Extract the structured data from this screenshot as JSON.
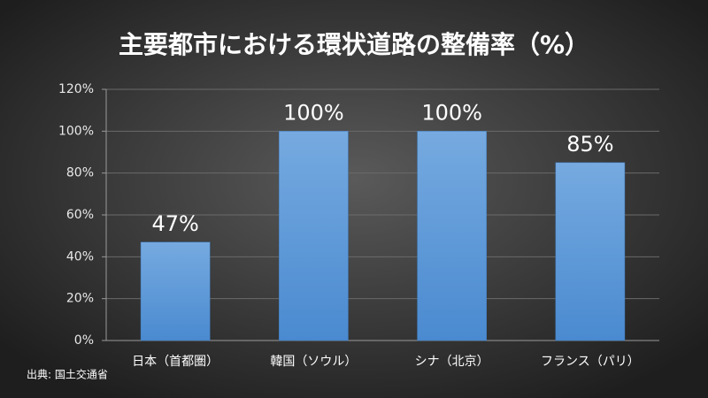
{
  "chart_data": {
    "type": "bar",
    "title": "主要都市における環状道路の整備率（%）",
    "categories": [
      "日本（首都圏）",
      "韓国（ソウル）",
      "シナ（北京）",
      "フランス（パリ）"
    ],
    "values": [
      47,
      100,
      100,
      85
    ],
    "value_labels": [
      "47%",
      "100%",
      "100%",
      "85%"
    ],
    "color": "#5b9bd5",
    "ylim": [
      0,
      120
    ],
    "yticks": [
      {
        "value": 0,
        "label": "0%"
      },
      {
        "value": 20,
        "label": "20%"
      },
      {
        "value": 40,
        "label": "40%"
      },
      {
        "value": 60,
        "label": "60%"
      },
      {
        "value": 80,
        "label": "80%"
      },
      {
        "value": 100,
        "label": "100%"
      },
      {
        "value": 120,
        "label": "120%"
      }
    ],
    "grid": true,
    "source": "出典: 国土交通省"
  }
}
